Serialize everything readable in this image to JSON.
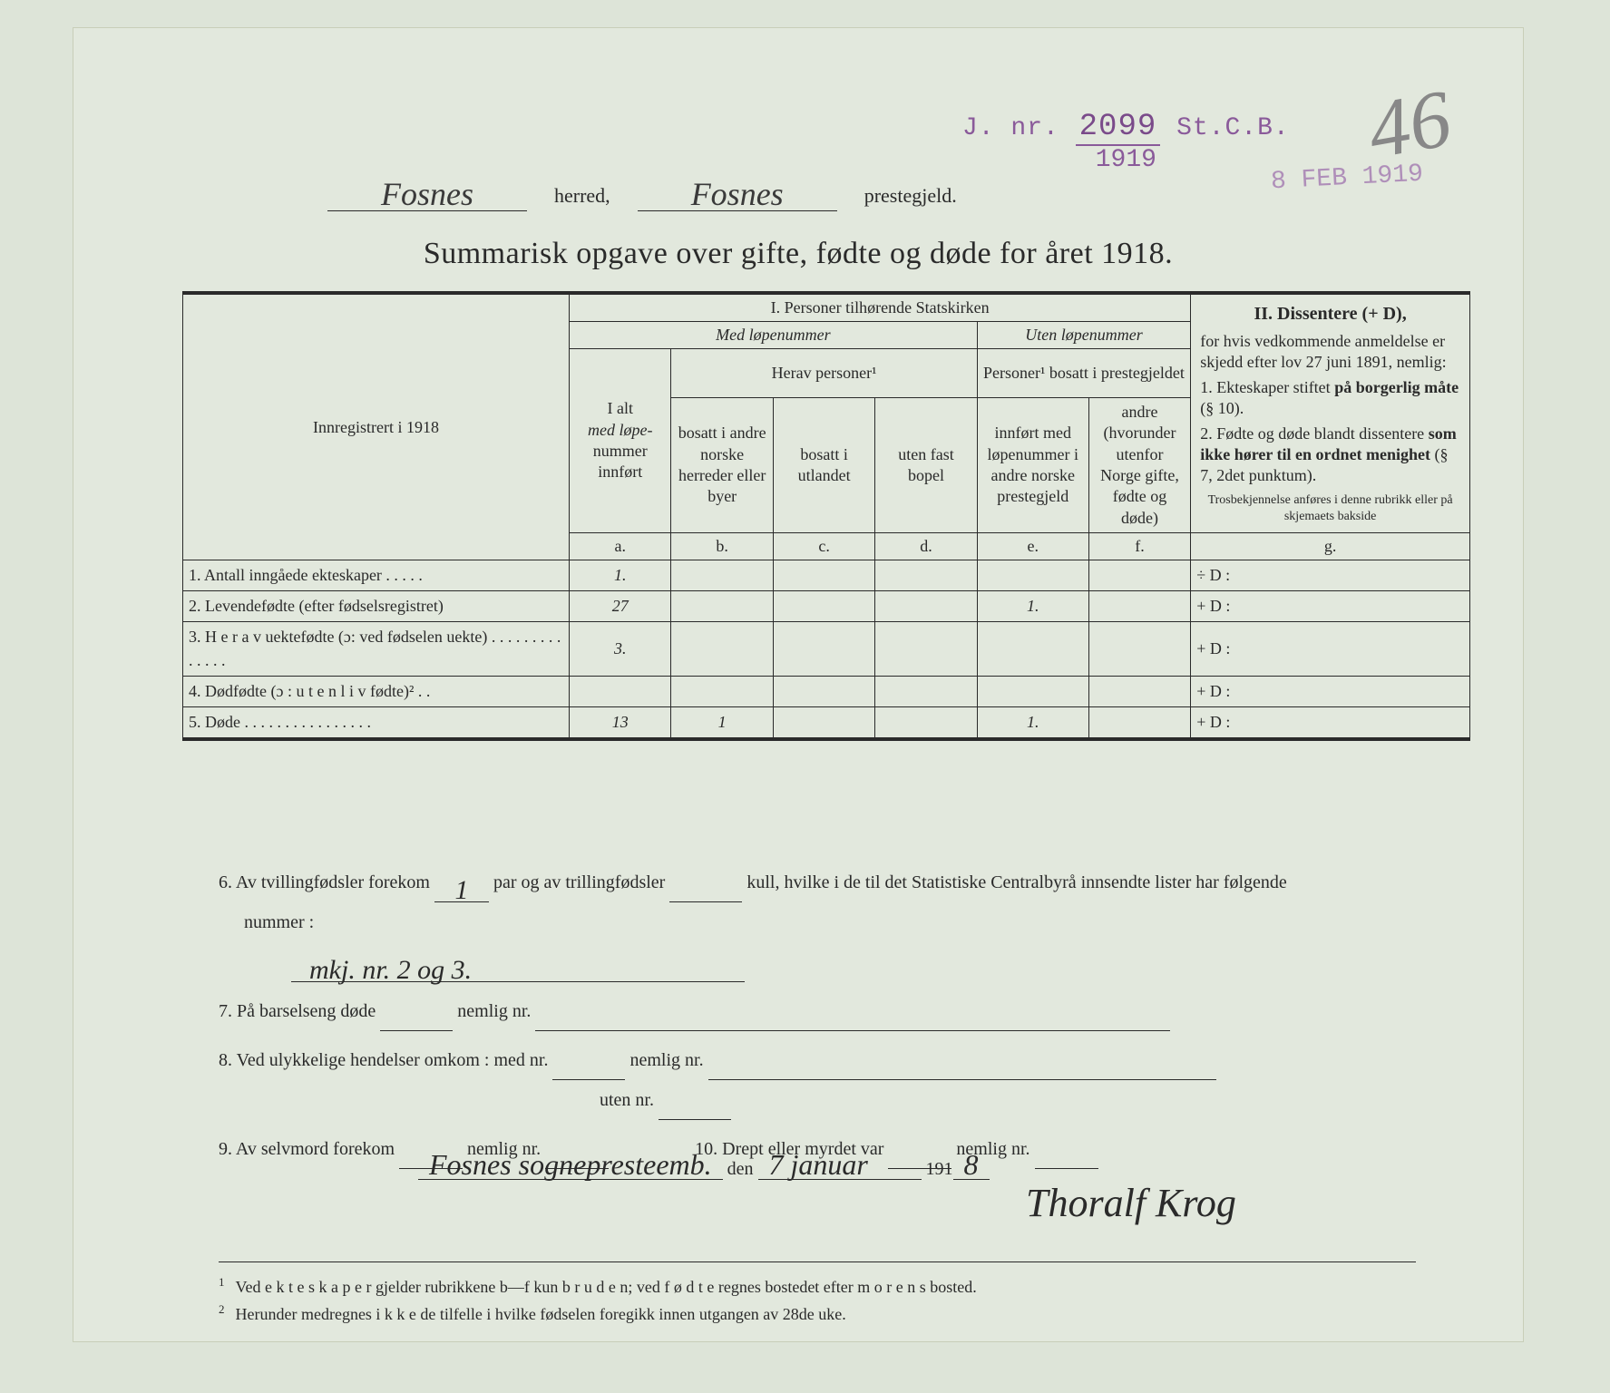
{
  "stamps": {
    "jnr_prefix": "J. nr.",
    "jnr_number": "2099",
    "jnr_suffix": "St.C.B.",
    "jnr_year": "1919",
    "pencil_number": "46",
    "date_stamp": "8 FEB 1919"
  },
  "header": {
    "herred_value": "Fosnes",
    "herred_label": "herred,",
    "prestegjeld_value": "Fosnes",
    "prestegjeld_label": "prestegjeld."
  },
  "title": "Summarisk opgave over gifte, fødte og døde for året 1918.",
  "table": {
    "left_header": "Innregistrert i 1918",
    "section1_title": "I.  Personer tilhørende Statskirken",
    "section1_sub1": "Med løpenummer",
    "section1_sub2": "Uten løpenummer",
    "col_a_l1": "I alt",
    "col_a_l2": "med løpe-",
    "col_a_l3": "nummer",
    "col_a_l4": "innført",
    "col_a_letter": "a.",
    "herav_header": "Herav personer¹",
    "col_b_l1": "bosatt i andre norske herreder eller byer",
    "col_b_letter": "b.",
    "col_c_l1": "bosatt i utlandet",
    "col_c_letter": "c.",
    "col_d_l1": "uten fast bopel",
    "col_d_letter": "d.",
    "personer_header": "Personer¹ bosatt i prestegjeldet",
    "col_e_l1": "innført med løpenummer i andre norske prestegjeld",
    "col_e_letter": "e.",
    "col_f_l1": "andre (hvorunder utenfor Norge gifte, fødte og døde)",
    "col_f_letter": "f.",
    "section2_title": "II.  Dissentere (+ D),",
    "section2_body": "for hvis vedkommende anmeldelse er skjedd efter lov 27 juni 1891, nemlig:",
    "section2_item1": "1. Ekteskaper stiftet på borgerlig måte (§ 10).",
    "section2_item2": "2. Fødte og døde blandt dissentere som ikke hører til en ordnet menighet (§ 7, 2det punktum).",
    "section2_note": "Trosbekjennelse anføres i denne rubrikk eller på skjemaets bakside",
    "col_g_letter": "g.",
    "rows": [
      {
        "n": "1.",
        "label": "Antall inngåede ekteskaper . . . . .",
        "a": "1.",
        "b": "",
        "c": "",
        "d": "",
        "e": "",
        "f": "",
        "g": "÷ D :"
      },
      {
        "n": "2.",
        "label": "Levendefødte (efter fødselsregistret)",
        "a": "27",
        "b": "",
        "c": "",
        "d": "",
        "e": "1.",
        "f": "",
        "g": "+ D :"
      },
      {
        "n": "3.",
        "label": "H e r a v uektefødte (ɔ: ved fødselen uekte) . . . . . . . . . . . . . .",
        "a": "3.",
        "b": "",
        "c": "",
        "d": "",
        "e": "",
        "f": "",
        "g": "+ D :"
      },
      {
        "n": "4.",
        "label": "Dødfødte (ɔ : u t e n  l i v  fødte)² . .",
        "a": "",
        "b": "",
        "c": "",
        "d": "",
        "e": "",
        "f": "",
        "g": "+ D :"
      },
      {
        "n": "5.",
        "label": "Døde . . . . . . . . . . . . . . . .",
        "a": "13",
        "b": "1",
        "c": "",
        "d": "",
        "e": "1.",
        "f": "",
        "g": "+ D :"
      }
    ]
  },
  "below": {
    "item6_pre": "6.  Av tvillingfødsler forekom",
    "item6_val1": "1",
    "item6_mid": "par og av trillingfødsler",
    "item6_val2": "",
    "item6_post": "kull, hvilke i de til det Statistiske Centralbyrå innsendte lister har følgende",
    "item6_line2": "nummer :",
    "item6_written": "mkj.  nr. 2 og 3.",
    "item7": "7.  På barselseng døde",
    "item7_nemlig": "nemlig nr.",
    "item8": "8.  Ved ulykkelige hendelser omkom :  med nr.",
    "item8_nemlig": "nemlig nr.",
    "item8_uten": "uten nr.",
    "item9": "9.  Av selvmord forekom",
    "item9_nemlig": "nemlig nr.",
    "item10": "10.  Drept eller myrdet var",
    "item10_nemlig": "nemlig nr."
  },
  "signature": {
    "place": "Fosnes sognepresteemb.",
    "den": "den",
    "date": "7 januar",
    "year_prefix": "191",
    "year_digit": "8",
    "name": "Thoralf Krog"
  },
  "footnotes": {
    "f1": "Ved e k t e s k a p e r gjelder rubrikkene b—f kun b r u d e n; ved f ø d t e regnes bostedet efter m o r e n s bosted.",
    "f2": "Herunder medregnes i k k e de tilfelle i hvilke fødselen foregikk innen utgangen av 28de uke."
  }
}
